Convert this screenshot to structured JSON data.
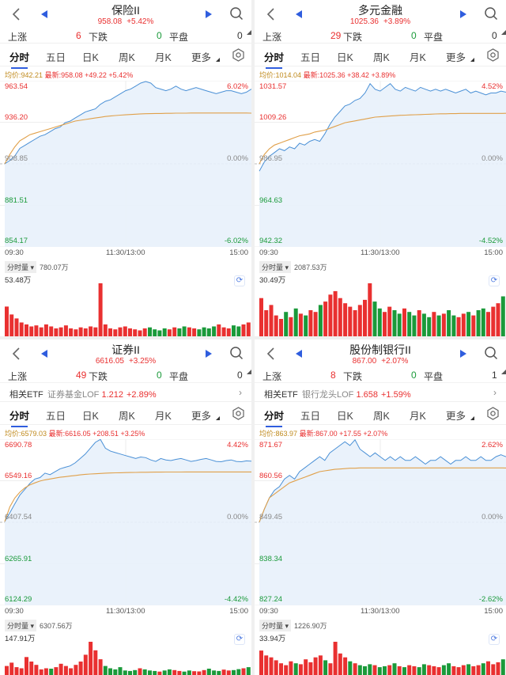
{
  "colors": {
    "up": "#e93030",
    "down": "#1a9a3a",
    "accent": "#2f5dde",
    "price_line": "#4a90d6",
    "avg_line": "#e0a04a"
  },
  "common": {
    "stats_labels": {
      "up": "上涨",
      "down": "下跌",
      "flat": "平盘"
    },
    "tabs": [
      "分时",
      "五日",
      "日K",
      "周K",
      "月K",
      "更多"
    ],
    "time_axis": [
      "09:30",
      "11:30/13:00",
      "15:00"
    ],
    "vol_label": "分时量",
    "avg_prefix": "均价:",
    "latest_prefix": "最新:",
    "related_etf_label": "相关ETF"
  },
  "panels": [
    {
      "title": "保险II",
      "price": "958.08",
      "pct": "+5.42%",
      "up": "6",
      "down": "0",
      "flat": "0",
      "avg": "942.21",
      "latest": "958.08",
      "chg": "+49.22",
      "chg_pct": "+5.42%",
      "y_labels": [
        "963.54",
        "936.20",
        "908.85",
        "881.51",
        "854.17"
      ],
      "pct_labels": [
        "6.02%",
        "0.00%",
        "-6.02%"
      ],
      "vol_total": "780.07万",
      "vol_max": "53.48万",
      "etf": null,
      "chart_data": {
        "type": "line",
        "prev_close": 908.85,
        "ylim": [
          854.17,
          963.54
        ],
        "price": [
          908.9,
          911,
          914,
          919,
          921,
          923,
          925,
          927,
          928,
          930,
          932,
          933,
          936,
          937,
          939,
          941,
          943,
          944,
          945,
          948,
          950,
          951,
          953,
          955,
          957,
          958,
          960,
          962,
          963,
          962,
          959,
          958,
          957,
          958,
          960,
          958,
          957,
          958,
          959,
          958,
          957,
          956,
          955,
          956,
          957,
          957,
          956,
          955,
          956,
          958
        ],
        "avg": [
          908.9,
          915,
          920,
          924,
          926,
          928,
          929,
          930,
          931,
          932,
          933,
          934,
          935,
          936,
          937,
          937.5,
          938,
          938.5,
          939,
          939.5,
          940,
          940.3,
          940.6,
          940.9,
          941.1,
          941.3,
          941.5,
          941.7,
          941.8,
          941.9,
          942,
          942,
          942.1,
          942.1,
          942.2,
          942.2,
          942.2,
          942.3,
          942.3,
          942.3,
          942.3,
          942.3,
          942.3,
          942.3,
          942.3,
          942.3,
          942.3,
          942.3,
          942.3,
          942.21
        ],
        "volume": [
          30,
          22,
          18,
          14,
          12,
          10,
          11,
          9,
          12,
          10,
          8,
          9,
          11,
          8,
          7,
          9,
          8,
          10,
          9,
          53.48,
          12,
          8,
          7,
          9,
          10,
          8,
          7,
          6,
          8,
          9,
          7,
          6,
          8,
          7,
          9,
          8,
          10,
          9,
          8,
          7,
          9,
          8,
          10,
          12,
          9,
          8,
          11,
          10,
          12,
          14
        ]
      }
    },
    {
      "title": "多元金融",
      "price": "1025.36",
      "pct": "+3.89%",
      "up": "29",
      "down": "0",
      "flat": "0",
      "avg": "1014.04",
      "latest": "1025.36",
      "chg": "+38.42",
      "chg_pct": "+3.89%",
      "y_labels": [
        "1031.57",
        "1009.26",
        "986.95",
        "964.63",
        "942.32"
      ],
      "pct_labels": [
        "4.52%",
        "0.00%",
        "-4.52%"
      ],
      "vol_total": "2087.53万",
      "vol_max": "30.49万",
      "etf": null,
      "chart_data": {
        "type": "line",
        "prev_close": 986.95,
        "ylim": [
          942.32,
          1031.57
        ],
        "price": [
          983,
          988,
          991,
          993,
          995,
          994,
          996,
          995,
          998,
          997,
          999,
          1000,
          999,
          1003,
          1008,
          1012,
          1015,
          1018,
          1019,
          1021,
          1022,
          1025,
          1030,
          1027,
          1026,
          1028,
          1030,
          1027,
          1026,
          1028,
          1027,
          1026,
          1028,
          1027,
          1026,
          1027,
          1026,
          1027,
          1026,
          1025,
          1026,
          1027,
          1025,
          1026,
          1025,
          1024,
          1025,
          1025,
          1026,
          1025.4
        ],
        "avg": [
          987,
          992,
          995,
          997,
          998,
          999,
          1000,
          1001,
          1002,
          1002.5,
          1003,
          1004,
          1004.5,
          1005,
          1006,
          1007,
          1008,
          1009,
          1009.5,
          1010,
          1010.5,
          1011,
          1011.5,
          1012,
          1012.2,
          1012.4,
          1012.6,
          1012.8,
          1013,
          1013.1,
          1013.2,
          1013.3,
          1013.4,
          1013.5,
          1013.6,
          1013.7,
          1013.8,
          1013.8,
          1013.9,
          1013.9,
          1014,
          1014,
          1014,
          1014,
          1014,
          1014,
          1014,
          1014,
          1014,
          1014.04
        ],
        "volume": [
          22,
          15,
          18,
          12,
          10,
          14,
          11,
          16,
          13,
          12,
          15,
          14,
          18,
          20,
          24,
          26,
          22,
          19,
          17,
          15,
          18,
          21,
          30.49,
          20,
          16,
          14,
          17,
          15,
          13,
          16,
          14,
          12,
          15,
          13,
          11,
          14,
          12,
          13,
          15,
          12,
          11,
          13,
          14,
          12,
          15,
          16,
          14,
          17,
          19,
          23
        ]
      }
    },
    {
      "title": "证券II",
      "price": "6616.05",
      "pct": "+3.25%",
      "up": "49",
      "down": "0",
      "flat": "0",
      "avg": "6579.03",
      "latest": "6616.05",
      "chg": "+208.51",
      "chg_pct": "+3.25%",
      "y_labels": [
        "6690.78",
        "6549.16",
        "6407.54",
        "6265.91",
        "6124.29"
      ],
      "pct_labels": [
        "4.42%",
        "0.00%",
        "-4.42%"
      ],
      "vol_total": "6307.56万",
      "vol_max": "147.91万",
      "etf": {
        "name": "证券基金LOF",
        "price": "1.212",
        "pct": "+2.89%"
      },
      "chart_data": {
        "type": "line",
        "prev_close": 6407.54,
        "ylim": [
          6124.29,
          6690.78
        ],
        "price": [
          6410,
          6440,
          6470,
          6500,
          6520,
          6540,
          6555,
          6560,
          6575,
          6570,
          6580,
          6590,
          6595,
          6600,
          6610,
          6625,
          6640,
          6660,
          6680,
          6690,
          6660,
          6650,
          6645,
          6640,
          6635,
          6630,
          6625,
          6630,
          6628,
          6620,
          6615,
          6625,
          6620,
          6618,
          6622,
          6625,
          6620,
          6615,
          6618,
          6622,
          6625,
          6620,
          6615,
          6614,
          6618,
          6620,
          6615,
          6614,
          6617,
          6616
        ],
        "avg": [
          6410,
          6460,
          6490,
          6510,
          6525,
          6535,
          6542,
          6548,
          6552,
          6555,
          6558,
          6561,
          6563,
          6565,
          6567,
          6569,
          6571,
          6572,
          6573,
          6574,
          6575,
          6575.5,
          6576,
          6576.5,
          6577,
          6577.3,
          6577.6,
          6577.9,
          6578.1,
          6578.3,
          6578.5,
          6578.6,
          6578.7,
          6578.8,
          6578.9,
          6578.9,
          6579,
          6579,
          6579,
          6579,
          6579,
          6579,
          6579,
          6579,
          6579,
          6579,
          6579,
          6579,
          6579,
          6579.03
        ],
        "volume": [
          40,
          55,
          35,
          30,
          80,
          60,
          45,
          25,
          30,
          28,
          35,
          50,
          40,
          30,
          45,
          60,
          90,
          147.91,
          110,
          70,
          40,
          30,
          25,
          35,
          20,
          18,
          22,
          30,
          25,
          20,
          18,
          15,
          20,
          25,
          22,
          18,
          15,
          20,
          17,
          16,
          22,
          28,
          20,
          18,
          24,
          20,
          22,
          26,
          30,
          35
        ]
      }
    },
    {
      "title": "股份制银行II",
      "price": "867.00",
      "pct": "+2.07%",
      "up": "8",
      "down": "0",
      "flat": "1",
      "avg": "863.97",
      "latest": "867.00",
      "chg": "+17.55",
      "chg_pct": "+2.07%",
      "y_labels": [
        "871.67",
        "860.56",
        "849.45",
        "838.34",
        "827.24"
      ],
      "pct_labels": [
        "2.62%",
        "0.00%",
        "-2.62%"
      ],
      "vol_total": "1226.90万",
      "vol_max": "33.94万",
      "etf": {
        "name": "银行龙头LOF",
        "price": "1.658",
        "pct": "+1.59%"
      },
      "chart_data": {
        "type": "line",
        "prev_close": 849.45,
        "ylim": [
          827.24,
          871.67
        ],
        "price": [
          849.5,
          853,
          856,
          858,
          859,
          861,
          862,
          861,
          863,
          864,
          865,
          866,
          867,
          866,
          868,
          869,
          870,
          871,
          870,
          871.5,
          869,
          868,
          867,
          868,
          867,
          866,
          867,
          866,
          867,
          866,
          866,
          867,
          866,
          865,
          866,
          866,
          867,
          866,
          865,
          866,
          866,
          867,
          866,
          866,
          867,
          866,
          866,
          867,
          867.5,
          867
        ],
        "avg": [
          849.5,
          853,
          856,
          857,
          858,
          859,
          860,
          860.5,
          861,
          861.5,
          862,
          862.5,
          863,
          863.2,
          863.4,
          863.6,
          863.7,
          863.8,
          863.9,
          863.9,
          864,
          864,
          864,
          864,
          864,
          864,
          864,
          864,
          864,
          864,
          864,
          864,
          864,
          864,
          864,
          864,
          864,
          864,
          864,
          864,
          864,
          864,
          864,
          864,
          864,
          864,
          864,
          864,
          864,
          863.97
        ],
        "volume": [
          25,
          20,
          18,
          15,
          12,
          10,
          14,
          12,
          11,
          16,
          13,
          18,
          20,
          15,
          12,
          33.94,
          22,
          18,
          14,
          12,
          10,
          9,
          11,
          10,
          8,
          9,
          10,
          12,
          9,
          8,
          10,
          9,
          8,
          11,
          10,
          9,
          8,
          10,
          12,
          9,
          8,
          10,
          11,
          9,
          10,
          12,
          14,
          11,
          13,
          16
        ]
      }
    }
  ]
}
